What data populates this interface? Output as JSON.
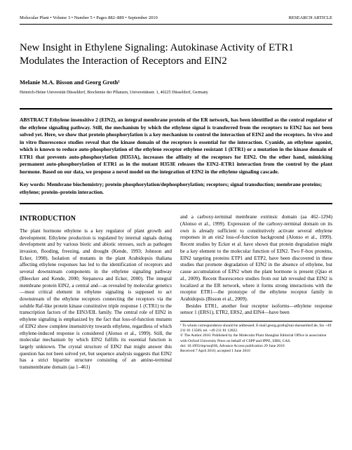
{
  "header": {
    "left": "Molecular Plant • Volume 3 • Number 5 • Pages 882–889 • September 2010",
    "right": "RESEARCH ARTICLE"
  },
  "title": "New Insight in Ethylene Signaling: Autokinase Activity of ETR1 Modulates the Interaction of Receptors and EIN2",
  "authors": "Melanie M.A. Bisson and Georg Groth¹",
  "affiliation": "Heinrich-Heine Universität Düsseldorf, Biochemie der Pflanzen, Universitätsstr. 1, 40225 Düsseldorf, Germany",
  "abstract": "ABSTRACT  Ethylene insensitive 2 (EIN2), an integral membrane protein of the ER network, has been identified as the central regulator of the ethylene signaling pathway. Still, the mechanism by which the ethylene signal is transferred from the receptors to EIN2 has not been solved yet. Here, we show that protein phosphorylation is a key mechanism to control the interaction of EIN2 and the receptors. In vivo and in vitro fluorescence studies reveal that the kinase domain of the receptors is essential for the interaction. Cyanide, an ethylene agonist, which is known to reduce auto-phosphorylation of the ethylene receptor ethylene resistant 1 (ETR1) or a mutation in the kinase domain of ETR1 that prevents auto-phosphorylation (H353A), increases the affinity of the receptors for EIN2. On the other hand, mimicking permanent auto-phosphorylation of ETR1 as in the mutant H353E releases the EIN2–ETR1 interaction from the control by the plant hormone. Based on our data, we propose a novel model on the integration of EIN2 in the ethylene signaling cascade.",
  "keywords": "Key words:  Membrane biochemistry; protein phosphorylation/dephosphorylation; receptors; signal transduction; membrane proteins; ethylene; protein–protein interaction.",
  "section_heading": "INTRODUCTION",
  "col1_p1": "The plant hormone ethylene is a key regulator of plant growth and development. Ethylene production is regulated by internal signals during development and by various biotic and abiotic stresses, such as pathogen invasion, flooding, freezing, and drought (Kende, 1993; Johnson and Ecker, 1998). Isolation of mutants in the plant Arabidopsis thaliana affecting ethylene responses has led to the identification of receptors and several downstream components in the ethylene signaling pathway (Bleecker and Kende, 2000; Stepanova and Ecker, 2000). The integral membrane protein EIN2, a central and—as revealed by molecular genetics—most critical element in ethylene signaling is supposed to act downstream of the ethylene receptors connecting the receptors via the soluble Raf-like protein kinase constitutive triple response 1 (CTR1) to the transcription factors of the EIN3/EIL family. The central role of EIN2 in ethylene signaling is emphasized by the fact that loss-of-function mutants of EIN2 show complete insensitivity towards ethylene, regardless of which ethylene-induced response is considered (Alonso et al., 1999). Still, the molecular mechanism by which EIN2 fulfills its essential function is largely unknown. The crystal structure of EIN2 that might answer this question has not been solved yet, but sequence analysis suggests that EIN2 has a strict bipartite structure consisting of an amino-terminal transmembrane domain (aa 1–461)",
  "col2_p1": "and a carboxy-terminal membrane extrinsic domain (aa 462–1294) (Alonso et al., 1999). Expression of the carboxy-terminal domain on its own is already sufficient to constitutively activate several ethylene responses in an ein2 loss-of-function background (Alonso et al., 1999). Recent studies by Ecker et al. have shown that protein degradation might be a key element to the molecular function of EIN2. Two F-box proteins, EIN2 targeting proteins ETP1 and ETP2, have been discovered in these studies that promote degradation of EIN2 in the absence of ethylene, but cause accumulation of EIN2 when the plant hormone is present (Qiao et al., 2009). Recent fluorescence studies from our lab revealed that EIN2 is localized at the ER network, where it forms strong interactions with the receptor ETR1—the prototype of the ethylene receptor family in Arabidopsis (Bisson et al., 2009).",
  "col2_p2": "Besides ETR1, another four receptor isoforms—ethylene response sensor 1 (ERS1), ETR2, ERS2, and EIN4—have been",
  "footnote1": "¹ To whom correspondence should be addressed. E-mail georg.groth@uni-duesseldorf.de, fax +49 211 81 13569, tel. +49 211 81 12822.",
  "footnote2": "© The Author 2010. Published by the Molecular Plant Shanghai Editorial Office in association with Oxford University Press on behalf of CSPP and IPPE, SIBS, CAS.",
  "footnote3": "doi: 10.1093/mp/ssq036, Advance Access publication 29 June 2010",
  "footnote4": "Received 7 April 2010; accepted 1 June 2010"
}
